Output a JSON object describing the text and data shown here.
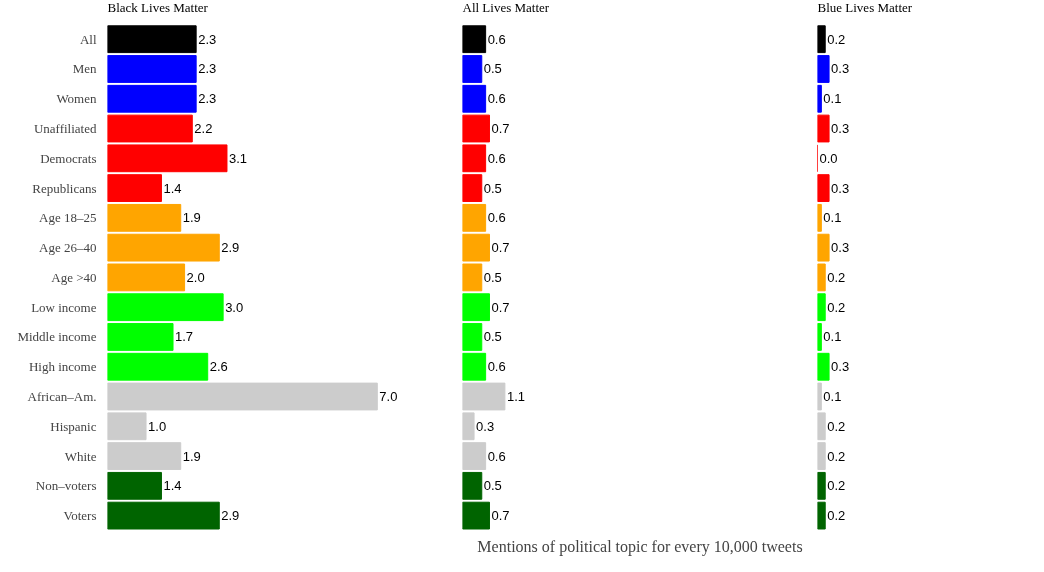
{
  "chart_data": [
    {
      "type": "bar",
      "orientation": "horizontal",
      "title": "Black Lives Matter",
      "categories": [
        "All",
        "Men",
        "Women",
        "Unaffiliated",
        "Democrats",
        "Republicans",
        "Age 18–25",
        "Age 26–40",
        "Age >40",
        "Low income",
        "Middle income",
        "High income",
        "African–Am.",
        "Hispanic",
        "White",
        "Non–voters",
        "Voters"
      ],
      "values": [
        2.3,
        2.3,
        2.3,
        2.2,
        3.1,
        1.4,
        1.9,
        2.9,
        2.0,
        3.0,
        1.7,
        2.6,
        7.0,
        1.0,
        1.9,
        1.4,
        2.9
      ],
      "value_labels": [
        "2.3",
        "2.3",
        "2.3",
        "2.2",
        "3.1",
        "1.4",
        "1.9",
        "2.9",
        "2.0",
        "3.0",
        "1.7",
        "2.6",
        "7.0",
        "1.0",
        "1.9",
        "1.4",
        "2.9"
      ],
      "colors": [
        "#000000",
        "#0000ff",
        "#0000ff",
        "#ff0000",
        "#ff0000",
        "#ff0000",
        "#ffa500",
        "#ffa500",
        "#ffa500",
        "#00ff00",
        "#00ff00",
        "#00ff00",
        "#cccccc",
        "#cccccc",
        "#cccccc",
        "#006400",
        "#006400"
      ],
      "tick_labels": "y",
      "grid": false
    },
    {
      "type": "bar",
      "orientation": "horizontal",
      "title": "All Lives Matter",
      "xlabel": "Mentions of political topic for every 10,000 tweets",
      "values": [
        0.6,
        0.5,
        0.6,
        0.7,
        0.6,
        0.5,
        0.6,
        0.7,
        0.5,
        0.7,
        0.5,
        0.6,
        1.1,
        0.3,
        0.6,
        0.5,
        0.7
      ],
      "value_labels": [
        "0.6",
        "0.5",
        "0.6",
        "0.7",
        "0.6",
        "0.5",
        "0.6",
        "0.7",
        "0.5",
        "0.7",
        "0.5",
        "0.6",
        "1.1",
        "0.3",
        "0.6",
        "0.5",
        "0.7"
      ],
      "colors": [
        "#000000",
        "#0000ff",
        "#0000ff",
        "#ff0000",
        "#ff0000",
        "#ff0000",
        "#ffa500",
        "#ffa500",
        "#ffa500",
        "#00ff00",
        "#00ff00",
        "#00ff00",
        "#cccccc",
        "#cccccc",
        "#cccccc",
        "#006400",
        "#006400"
      ],
      "tick_labels": false,
      "grid": false
    },
    {
      "type": "bar",
      "orientation": "horizontal",
      "title": "Blue Lives Matter",
      "values": [
        0.2,
        0.3,
        0.1,
        0.3,
        0.0,
        0.3,
        0.1,
        0.3,
        0.2,
        0.2,
        0.1,
        0.3,
        0.1,
        0.2,
        0.2,
        0.2,
        0.2
      ],
      "value_labels": [
        "0.2",
        "0.3",
        "0.1",
        "0.3",
        "0.0",
        "0.3",
        "0.1",
        "0.3",
        "0.2",
        "0.2",
        "0.1",
        "0.3",
        "0.1",
        "0.2",
        "0.2",
        "0.2",
        "0.2"
      ],
      "colors": [
        "#000000",
        "#0000ff",
        "#0000ff",
        "#ff0000",
        "#ff0000",
        "#ff0000",
        "#ffa500",
        "#ffa500",
        "#ffa500",
        "#00ff00",
        "#00ff00",
        "#00ff00",
        "#cccccc",
        "#cccccc",
        "#cccccc",
        "#006400",
        "#006400"
      ],
      "tick_labels": false,
      "grid": false
    }
  ]
}
